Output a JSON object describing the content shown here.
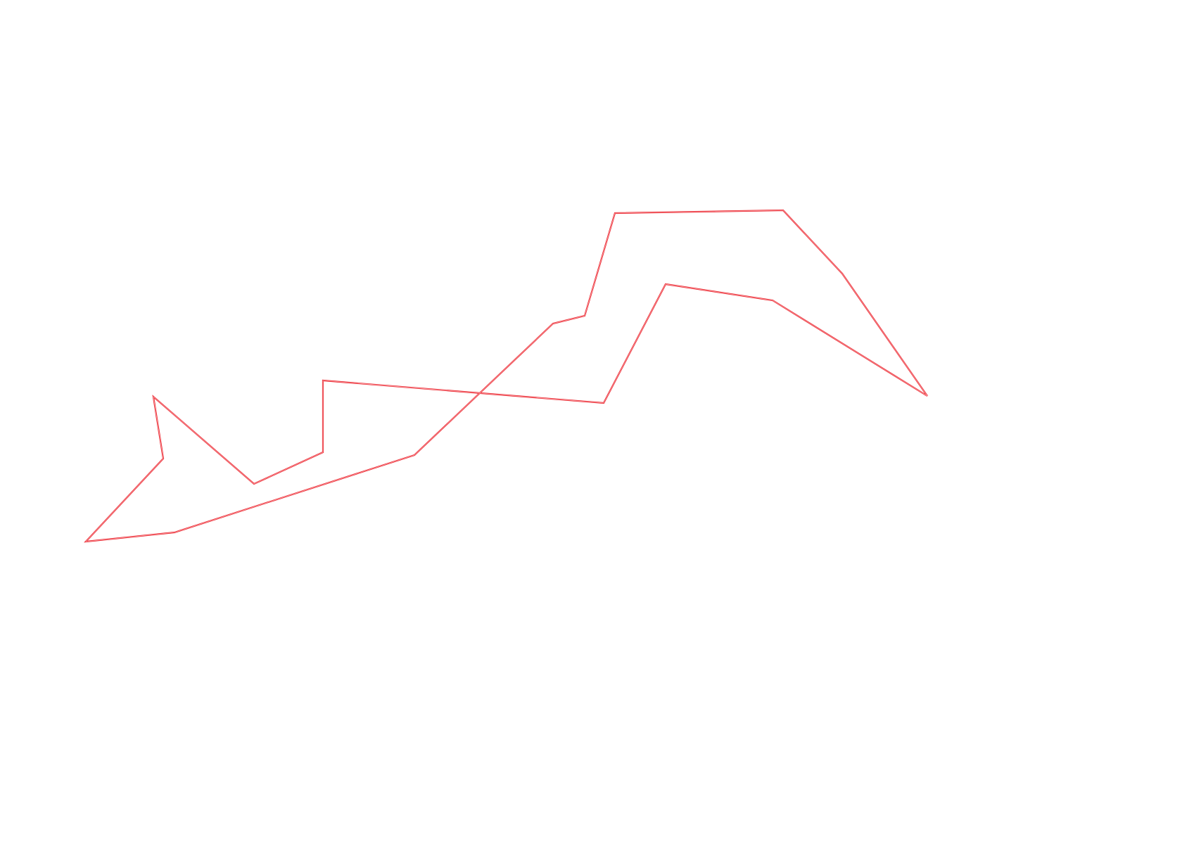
{
  "drawing": {
    "shape": "closed-polygon",
    "stroke_color": "#e8222a",
    "inner_color": "#ffb3b8",
    "fill": "none",
    "background_color": "#ffffff"
  }
}
